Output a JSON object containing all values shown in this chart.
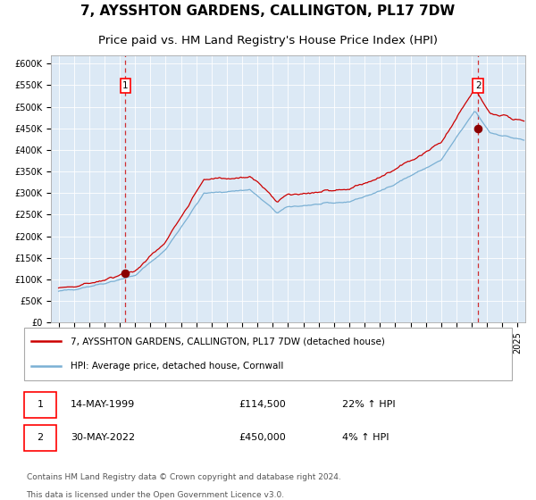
{
  "title": "7, AYSSHTON GARDENS, CALLINGTON, PL17 7DW",
  "subtitle": "Price paid vs. HM Land Registry's House Price Index (HPI)",
  "title_fontsize": 11,
  "subtitle_fontsize": 9.5,
  "plot_bg_color": "#dce9f5",
  "line1_color": "#cc0000",
  "line2_color": "#7ab0d4",
  "marker_color": "#8b0000",
  "sale1_date_num": 1999.37,
  "sale1_price": 114500,
  "sale2_date_num": 2022.41,
  "sale2_price": 450000,
  "legend_line1": "7, AYSSHTON GARDENS, CALLINGTON, PL17 7DW (detached house)",
  "legend_line2": "HPI: Average price, detached house, Cornwall",
  "footer_line1": "Contains HM Land Registry data © Crown copyright and database right 2024.",
  "footer_line2": "This data is licensed under the Open Government Licence v3.0.",
  "ylabel_ticks": [
    "£0",
    "£50K",
    "£100K",
    "£150K",
    "£200K",
    "£250K",
    "£300K",
    "£350K",
    "£400K",
    "£450K",
    "£500K",
    "£550K",
    "£600K"
  ],
  "ytick_vals": [
    0,
    50000,
    100000,
    150000,
    200000,
    250000,
    300000,
    350000,
    400000,
    450000,
    500000,
    550000,
    600000
  ],
  "xlim": [
    1994.5,
    2025.5
  ],
  "ylim": [
    0,
    620000
  ],
  "sale1_label": "14-MAY-1999",
  "sale1_price_str": "£114,500",
  "sale1_hpi": "22% ↑ HPI",
  "sale2_label": "30-MAY-2022",
  "sale2_price_str": "£450,000",
  "sale2_hpi": "4% ↑ HPI"
}
